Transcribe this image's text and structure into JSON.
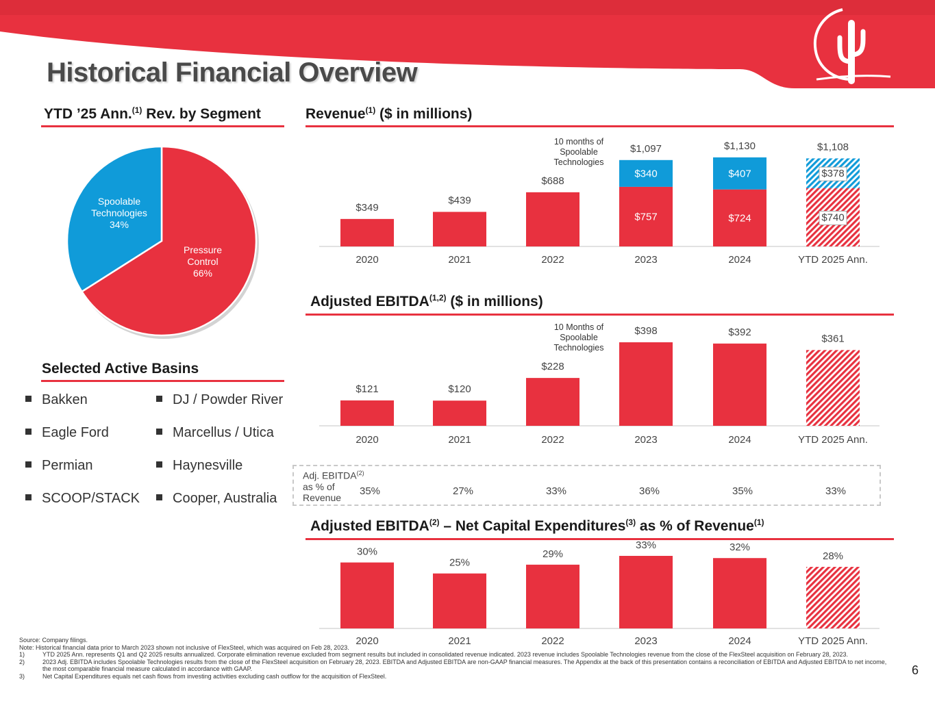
{
  "title": "Historical Financial Overview",
  "page_number": "6",
  "pie_section": {
    "title_pre": "YTD ’25 Ann.",
    "title_sup": "(1)",
    "title_post": " Rev. by Segment"
  },
  "revenue_section": {
    "title_pre": "Revenue",
    "title_sup": "(1)",
    "title_post": " ($ in millions)"
  },
  "ebitda_section": {
    "title_pre": "Adjusted EBITDA",
    "title_sup": "(1,2)",
    "title_post": " ($ in millions)"
  },
  "capex_section": {
    "title_pre": "Adjusted EBITDA",
    "title_sup1": "(2)",
    "title_mid": " – Net Capital Expenditures",
    "title_sup2": "(3)",
    "title_post": " as % of Revenue",
    "title_sup3": "(1)"
  },
  "basins_section": {
    "title": "Selected Active Basins",
    "left": [
      "Bakken",
      "Eagle Ford",
      "Permian",
      "SCOOP/STACK"
    ],
    "right": [
      "DJ / Powder River",
      "Marcellus / Utica",
      "Haynesville",
      "Cooper, Australia"
    ]
  },
  "margin_row": {
    "label_pre": "Adj. EBITDA",
    "label_sup": "(2)",
    "label_post": "as % of Revenue",
    "values": [
      "35%",
      "27%",
      "33%",
      "36%",
      "35%",
      "33%"
    ]
  },
  "colors": {
    "red": "#e8313f",
    "blue": "#109bd9",
    "header_red": "#e8313f",
    "hatch_bg": "#ffffff"
  },
  "chart_data": [
    {
      "id": "segment_pie",
      "type": "pie",
      "title": "YTD ’25 Ann.(1) Rev. by Segment",
      "slices": [
        {
          "label_lines": [
            "Pressure",
            "Control",
            "66%"
          ],
          "name": "Pressure Control",
          "value": 66,
          "color": "#e8313f"
        },
        {
          "label_lines": [
            "Spoolable",
            "Technologies",
            "34%"
          ],
          "name": "Spoolable Technologies",
          "value": 34,
          "color": "#109bd9"
        }
      ]
    },
    {
      "id": "revenue",
      "type": "bar",
      "stacked": true,
      "title": "Revenue(1) ($ in millions)",
      "categories": [
        "2020",
        "2021",
        "2022",
        "2023",
        "2024",
        "YTD 2025 Ann."
      ],
      "series": [
        {
          "name": "Pressure Control",
          "values": [
            349,
            439,
            688,
            757,
            724,
            740
          ],
          "labels": [
            "",
            "",
            "",
            "$757",
            "$724",
            "$740"
          ],
          "color": "#e8313f"
        },
        {
          "name": "Spoolable Technologies",
          "values": [
            0,
            0,
            0,
            340,
            407,
            378
          ],
          "labels": [
            "",
            "",
            "",
            "$340",
            "$407",
            "$378"
          ],
          "color": "#109bd9"
        }
      ],
      "totals": [
        "$349",
        "$439",
        "$688",
        "$1,097",
        "$1,130",
        "$1,108"
      ],
      "hatched_categories": [
        "YTD 2025 Ann."
      ],
      "annotation": {
        "category": "2023",
        "lines": [
          "10 months of",
          "Spoolable",
          "Technologies"
        ]
      },
      "ylim": [
        0,
        1130
      ],
      "ylabel": "",
      "xlabel": ""
    },
    {
      "id": "adj_ebitda",
      "type": "bar",
      "title": "Adjusted EBITDA(1,2) ($ in millions)",
      "categories": [
        "2020",
        "2021",
        "2022",
        "2023",
        "2024",
        "YTD 2025 Ann."
      ],
      "values": [
        121,
        120,
        228,
        398,
        392,
        361
      ],
      "labels": [
        "$121",
        "$120",
        "$228",
        "$398",
        "$392",
        "$361"
      ],
      "hatched_categories": [
        "YTD 2025 Ann."
      ],
      "annotation": {
        "category": "2023",
        "lines": [
          "10 Months of",
          "Spoolable",
          "Technologies"
        ]
      },
      "ylim": [
        0,
        398
      ],
      "ylabel": "",
      "xlabel": ""
    },
    {
      "id": "ebitda_less_capex_pct",
      "type": "bar",
      "title": "Adjusted EBITDA(2) – Net Capital Expenditures(3) as % of Revenue(1)",
      "categories": [
        "2020",
        "2021",
        "2022",
        "2023",
        "2024",
        "YTD 2025 Ann."
      ],
      "values": [
        30,
        25,
        29,
        33,
        32,
        28
      ],
      "labels": [
        "30%",
        "25%",
        "29%",
        "33%",
        "32%",
        "28%"
      ],
      "hatched_categories": [
        "YTD 2025 Ann."
      ],
      "ylim": [
        0,
        33
      ],
      "ylabel": "",
      "xlabel": ""
    }
  ],
  "footnotes": [
    {
      "num": "",
      "text": "Source: Company filings."
    },
    {
      "num": "",
      "text": "Note: Historical financial data prior to March 2023 shown not inclusive of FlexSteel, which was acquired on Feb 28, 2023."
    },
    {
      "num": "1)",
      "text": "YTD 2025 Ann. represents Q1 and Q2 2025 results annualized.  Corporate elimination revenue excluded from segment results but included in consolidated revenue indicated.  2023 revenue includes Spoolable Technologies revenue from the close of the FlexSteel acquisition on February 28, 2023."
    },
    {
      "num": "2)",
      "text": "2023 Adj. EBITDA includes Spoolable Technologies results from the close of the FlexSteel acquisition on February 28, 2023.  EBITDA and Adjusted EBITDA are non-GAAP financial measures. The Appendix at the back of this presentation contains a reconciliation of EBITDA and Adjusted EBITDA to net income, the most comparable financial measure calculated in accordance with GAAP."
    },
    {
      "num": "3)",
      "text": "Net Capital Expenditures equals net cash flows from investing activities excluding cash outflow for the acquisition of FlexSteel."
    }
  ]
}
